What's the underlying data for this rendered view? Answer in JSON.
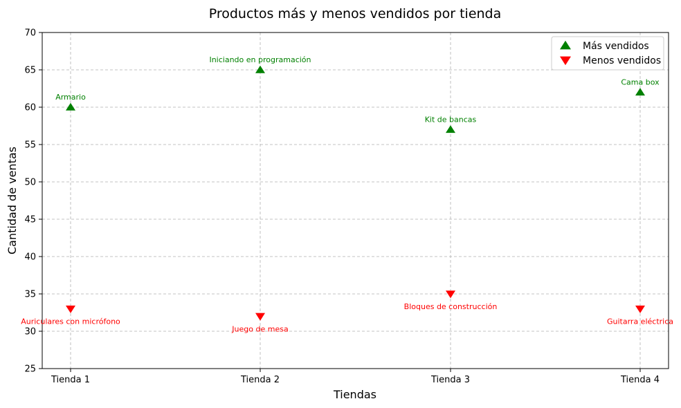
{
  "chart_data": {
    "type": "scatter",
    "title": "Productos más y menos vendidos por tienda",
    "xlabel": "Tiendas",
    "ylabel": "Cantidad de ventas",
    "categories": [
      "Tienda 1",
      "Tienda 2",
      "Tienda 3",
      "Tienda 4"
    ],
    "ylim": [
      25,
      70
    ],
    "yticks": [
      25,
      30,
      35,
      40,
      45,
      50,
      55,
      60,
      65,
      70
    ],
    "grid": true,
    "legend_position": "top-right",
    "series": [
      {
        "name": "Más vendidos",
        "marker": "triangle-up",
        "color": "#008000",
        "values": [
          60,
          65,
          57,
          62
        ],
        "labels": [
          "Armario",
          "Iniciando en programación",
          "Kit de bancas",
          "Cama box"
        ]
      },
      {
        "name": "Menos vendidos",
        "marker": "triangle-down",
        "color": "#ff0000",
        "values": [
          33,
          32,
          35,
          33
        ],
        "labels": [
          "Auriculares con micrófono",
          "Juego de mesa",
          "Bloques de construcción",
          "Guitarra eléctrica"
        ]
      }
    ]
  }
}
